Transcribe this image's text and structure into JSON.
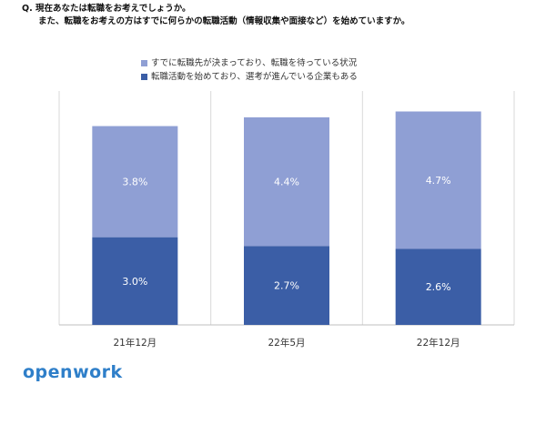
{
  "question": {
    "line1": "Q. 現在あなたは転職をお考えでしょうか。",
    "line2": "また、転職をお考えの方はすでに何らかの転職活動（情報収集や面接など）を始めていますか。"
  },
  "brand": "openwork",
  "colors": {
    "top": "#8f9fd4",
    "bottom": "#3b5ea6",
    "grid": "#d9d9d9"
  },
  "chart_data": {
    "type": "bar",
    "stacked": true,
    "categories": [
      "21年12月",
      "22年5月",
      "22年12月"
    ],
    "series": [
      {
        "name": "転職活動を始めており、選考が進んでいる企業もある",
        "values": [
          3.0,
          2.7,
          2.6
        ],
        "labels": [
          "3.0%",
          "2.7%",
          "2.6%"
        ],
        "color": "#3b5ea6"
      },
      {
        "name": "すでに転職先が決まっており、転職を待っている状況",
        "values": [
          3.8,
          4.4,
          4.7
        ],
        "labels": [
          "3.8%",
          "4.4%",
          "4.7%"
        ],
        "color": "#8f9fd4"
      }
    ],
    "legend": [
      "すでに転職先が決まっており、転職を待っている状況",
      "転職活動を始めており、選考が進んでいる企業もある"
    ],
    "legend_position": "top",
    "grid": "vertical category separators"
  }
}
